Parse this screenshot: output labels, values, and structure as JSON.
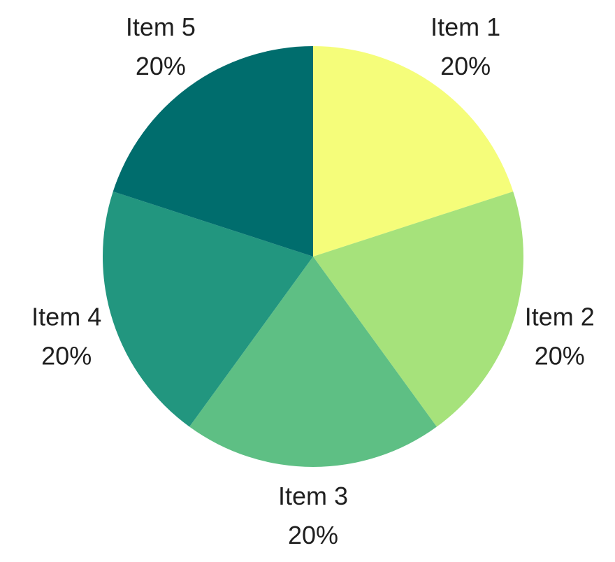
{
  "chart_data": {
    "type": "pie",
    "title": "",
    "start_angle_deg": 0,
    "direction": "clockwise",
    "slices": [
      {
        "label": "Item 1",
        "value": 20,
        "percent_label": "20%",
        "color": "#f5fd7a"
      },
      {
        "label": "Item 2",
        "value": 20,
        "percent_label": "20%",
        "color": "#a6e27b"
      },
      {
        "label": "Item 3",
        "value": 20,
        "percent_label": "20%",
        "color": "#5ebf84"
      },
      {
        "label": "Item 4",
        "value": 20,
        "percent_label": "20%",
        "color": "#22967f"
      },
      {
        "label": "Item 5",
        "value": 20,
        "percent_label": "20%",
        "color": "#006d6d"
      }
    ]
  }
}
